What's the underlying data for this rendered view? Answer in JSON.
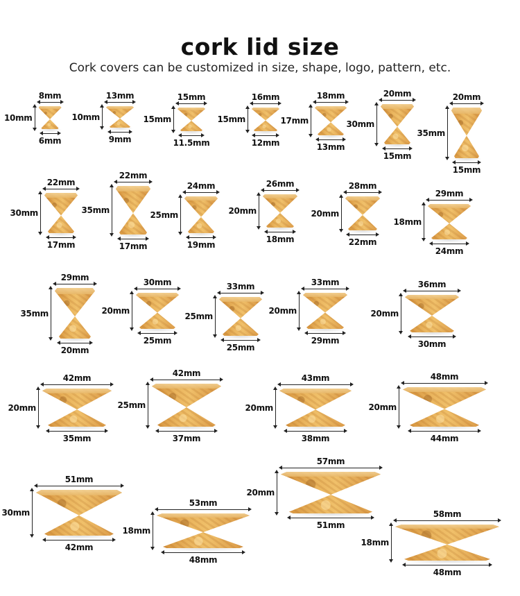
{
  "header": {
    "title": "cork lid size",
    "subtitle": "Cork covers can be customized in size, shape, logo, pattern, etc."
  },
  "colors": {
    "cork": "#e3a94f",
    "text": "#111111"
  },
  "corks": [
    {
      "top": "8mm",
      "height": "10mm",
      "bottom": "6mm"
    },
    {
      "top": "13mm",
      "height": "10mm",
      "bottom": "9mm"
    },
    {
      "top": "15mm",
      "height": "15mm",
      "bottom": "11.5mm"
    },
    {
      "top": "16mm",
      "height": "15mm",
      "bottom": "12mm"
    },
    {
      "top": "18mm",
      "height": "17mm",
      "bottom": "13mm"
    },
    {
      "top": "20mm",
      "height": "30mm",
      "bottom": "15mm"
    },
    {
      "top": "20mm",
      "height": "35mm",
      "bottom": "15mm"
    },
    {
      "top": "22mm",
      "height": "30mm",
      "bottom": "17mm"
    },
    {
      "top": "22mm",
      "height": "35mm",
      "bottom": "17mm"
    },
    {
      "top": "24mm",
      "height": "25mm",
      "bottom": "19mm"
    },
    {
      "top": "26mm",
      "height": "20mm",
      "bottom": "18mm"
    },
    {
      "top": "28mm",
      "height": "20mm",
      "bottom": "22mm"
    },
    {
      "top": "29mm",
      "height": "18mm",
      "bottom": "24mm"
    },
    {
      "top": "29mm",
      "height": "35mm",
      "bottom": "20mm"
    },
    {
      "top": "30mm",
      "height": "20mm",
      "bottom": "25mm"
    },
    {
      "top": "33mm",
      "height": "25mm",
      "bottom": "25mm"
    },
    {
      "top": "33mm",
      "height": "20mm",
      "bottom": "29mm"
    },
    {
      "top": "36mm",
      "height": "20mm",
      "bottom": "30mm"
    },
    {
      "top": "42mm",
      "height": "20mm",
      "bottom": "35mm"
    },
    {
      "top": "42mm",
      "height": "25mm",
      "bottom": "37mm"
    },
    {
      "top": "43mm",
      "height": "20mm",
      "bottom": "38mm"
    },
    {
      "top": "48mm",
      "height": "20mm",
      "bottom": "44mm"
    },
    {
      "top": "51mm",
      "height": "30mm",
      "bottom": "42mm"
    },
    {
      "top": "53mm",
      "height": "18mm",
      "bottom": "48mm"
    },
    {
      "top": "57mm",
      "height": "20mm",
      "bottom": "51mm"
    },
    {
      "top": "58mm",
      "height": "18mm",
      "bottom": "48mm"
    }
  ]
}
